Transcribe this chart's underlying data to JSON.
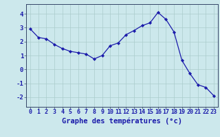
{
  "hours": [
    0,
    1,
    2,
    3,
    4,
    5,
    6,
    7,
    8,
    9,
    10,
    11,
    12,
    13,
    14,
    15,
    16,
    17,
    18,
    19,
    20,
    21,
    22,
    23
  ],
  "temps": [
    2.9,
    2.3,
    2.2,
    1.8,
    1.5,
    1.3,
    1.2,
    1.1,
    0.75,
    1.0,
    1.7,
    1.9,
    2.5,
    2.8,
    3.15,
    3.35,
    4.1,
    3.6,
    2.7,
    0.65,
    -0.3,
    -1.1,
    -1.3,
    -1.9
  ],
  "line_color": "#1a1aaa",
  "marker": "D",
  "marker_size": 2.2,
  "bg_color": "#cce8ec",
  "grid_color": "#aacccc",
  "ylabel_ticks": [
    -2,
    -1,
    0,
    1,
    2,
    3,
    4
  ],
  "ylim": [
    -2.7,
    4.7
  ],
  "xlim": [
    -0.5,
    23.5
  ],
  "spine_color": "#334466",
  "tick_label_color": "#1a1aaa",
  "xlabel_fontsize": 6.0,
  "ylabel_fontsize": 6.5,
  "title": "Graphe des températures (°c)",
  "title_fontsize": 7.5,
  "title_color": "#1a1aaa",
  "linewidth": 0.9
}
